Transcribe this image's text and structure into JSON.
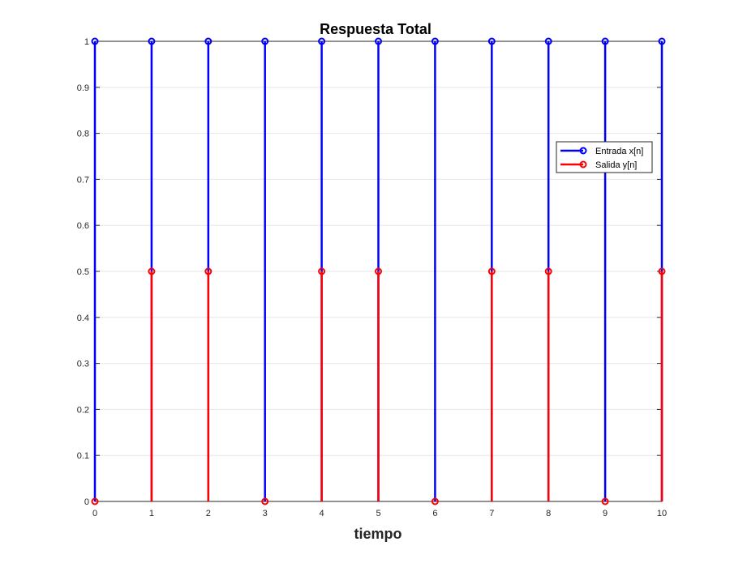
{
  "chart_data": {
    "type": "stem",
    "title": "Respuesta Total",
    "xlabel": "tiempo",
    "ylabel": "",
    "xlim": [
      0,
      10
    ],
    "ylim": [
      0,
      1
    ],
    "xticks": [
      0,
      1,
      2,
      3,
      4,
      5,
      6,
      7,
      8,
      9,
      10
    ],
    "yticks": [
      0,
      0.1,
      0.2,
      0.3,
      0.4,
      0.5,
      0.6,
      0.7,
      0.8,
      0.9,
      1
    ],
    "ytick_labels": [
      "0",
      "0.1",
      "0.2",
      "0.3",
      "0.4",
      "0.5",
      "0.6",
      "0.7",
      "0.8",
      "0.9",
      "1"
    ],
    "grid": true,
    "legend_position": "right",
    "x": [
      0,
      1,
      2,
      3,
      4,
      5,
      6,
      7,
      8,
      9,
      10
    ],
    "series": [
      {
        "name": "Entrada x[n]",
        "color": "#0000ff",
        "values": [
          1,
          1,
          1,
          1,
          1,
          1,
          1,
          1,
          1,
          1,
          1
        ]
      },
      {
        "name": "Salida y[n]",
        "color": "#ff0000",
        "values": [
          0,
          0.5,
          0.5,
          0,
          0.5,
          0.5,
          0,
          0.5,
          0.5,
          0,
          0.5
        ]
      }
    ]
  }
}
